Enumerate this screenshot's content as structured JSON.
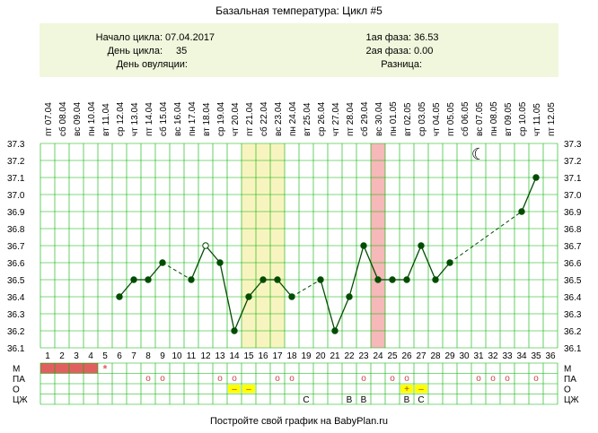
{
  "title": "Базальная температура: Цикл #5",
  "info": {
    "cycle_start_label": "Начало цикла:",
    "cycle_start_value": "07.04.2017",
    "cycle_day_label": "День цикла:",
    "cycle_day_value": "35",
    "ovulation_day_label": "День овуляции:",
    "ovulation_day_value": "",
    "phase1_label": "1ая фаза:",
    "phase1_value": "36.53",
    "phase2_label": "2ая фаза:",
    "phase2_value": "0.00",
    "difference_label": "Разница:",
    "difference_value": ""
  },
  "footer": "Постройте свой график на BabyPlan.ru",
  "colors": {
    "info_bg": "#f0f7dc",
    "line": "#004d00",
    "grid": "#00b000",
    "highlight_yellow": "#f8f4c0",
    "highlight_pink": "#f6b8b8",
    "menses": "#e06060",
    "marker_yellow": "#ffff00"
  },
  "chart_data": {
    "type": "line",
    "x": [
      1,
      2,
      3,
      4,
      5,
      6,
      7,
      8,
      9,
      10,
      11,
      12,
      13,
      14,
      15,
      16,
      17,
      18,
      19,
      20,
      21,
      22,
      23,
      24,
      25,
      26,
      27,
      28,
      29,
      30,
      31,
      32,
      33,
      34,
      35,
      36
    ],
    "dates": [
      "07.04",
      "08.04",
      "09.04",
      "10.04",
      "11.04",
      "12.04",
      "13.04",
      "14.04",
      "15.04",
      "16.04",
      "17.04",
      "18.04",
      "19.04",
      "20.04",
      "21.04",
      "22.04",
      "23.04",
      "24.04",
      "25.04",
      "26.04",
      "27.04",
      "28.04",
      "29.04",
      "30.04",
      "01.05",
      "02.05",
      "03.05",
      "04.05",
      "05.05",
      "06.05",
      "07.05",
      "08.05",
      "09.05",
      "10.05",
      "11.05",
      "12.05"
    ],
    "weekdays": [
      "пт",
      "сб",
      "вс",
      "пн",
      "вт",
      "ср",
      "чт",
      "пт",
      "сб",
      "вс",
      "пн",
      "вт",
      "ср",
      "чт",
      "пт",
      "сб",
      "вс",
      "пн",
      "вт",
      "ср",
      "чт",
      "пт",
      "сб",
      "вс",
      "пн",
      "вт",
      "ср",
      "чт",
      "пт",
      "сб",
      "вс",
      "пн",
      "вт",
      "ср",
      "чт",
      "пт"
    ],
    "temperatures": [
      null,
      null,
      null,
      null,
      null,
      36.4,
      36.5,
      36.5,
      36.6,
      null,
      36.5,
      36.7,
      36.6,
      36.2,
      36.4,
      36.5,
      36.5,
      36.4,
      null,
      36.5,
      36.2,
      36.4,
      36.7,
      36.5,
      36.5,
      36.5,
      36.7,
      36.5,
      36.6,
      null,
      null,
      null,
      null,
      36.9,
      37.1,
      null
    ],
    "open_points": [
      12
    ],
    "solid_segments": [
      [
        6,
        9
      ],
      [
        11,
        18
      ],
      [
        20,
        29
      ],
      [
        34,
        35
      ]
    ],
    "dashed_segments": [
      [
        9,
        11
      ],
      [
        18,
        20
      ],
      [
        29,
        34
      ]
    ],
    "ylim": [
      36.1,
      37.3
    ],
    "ytick_labels": [
      "36.1",
      "36.2",
      "36.3",
      "36.4",
      "36.5",
      "36.6",
      "36.7",
      "36.8",
      "36.9",
      "37.0",
      "37.1",
      "37.2",
      "37.3"
    ],
    "highlight_yellow_days": [
      15,
      17
    ],
    "highlight_pink_days": [
      24,
      24
    ],
    "moon_day": 31,
    "moon_symbol": "☾",
    "rows": {
      "labels": [
        "М",
        "ПА",
        "О",
        "ЦЖ"
      ],
      "menses_days": [
        1,
        2,
        3,
        4
      ],
      "menses_star_day": 5,
      "menses_star_symbol": "*",
      "pa_circle_days": [
        8,
        9,
        13,
        14,
        17,
        18,
        23,
        25,
        26,
        31,
        32,
        33,
        35
      ],
      "pa_circle_symbol": "о",
      "o_marks": [
        {
          "day": 14,
          "symbol": "–"
        },
        {
          "day": 15,
          "symbol": "–"
        },
        {
          "day": 26,
          "symbol": "+"
        },
        {
          "day": 27,
          "symbol": "–"
        }
      ],
      "cm_marks": [
        {
          "day": 19,
          "symbol": "С"
        },
        {
          "day": 22,
          "symbol": "В"
        },
        {
          "day": 23,
          "symbol": "В"
        },
        {
          "day": 26,
          "symbol": "В"
        },
        {
          "day": 27,
          "symbol": "С"
        }
      ]
    }
  }
}
